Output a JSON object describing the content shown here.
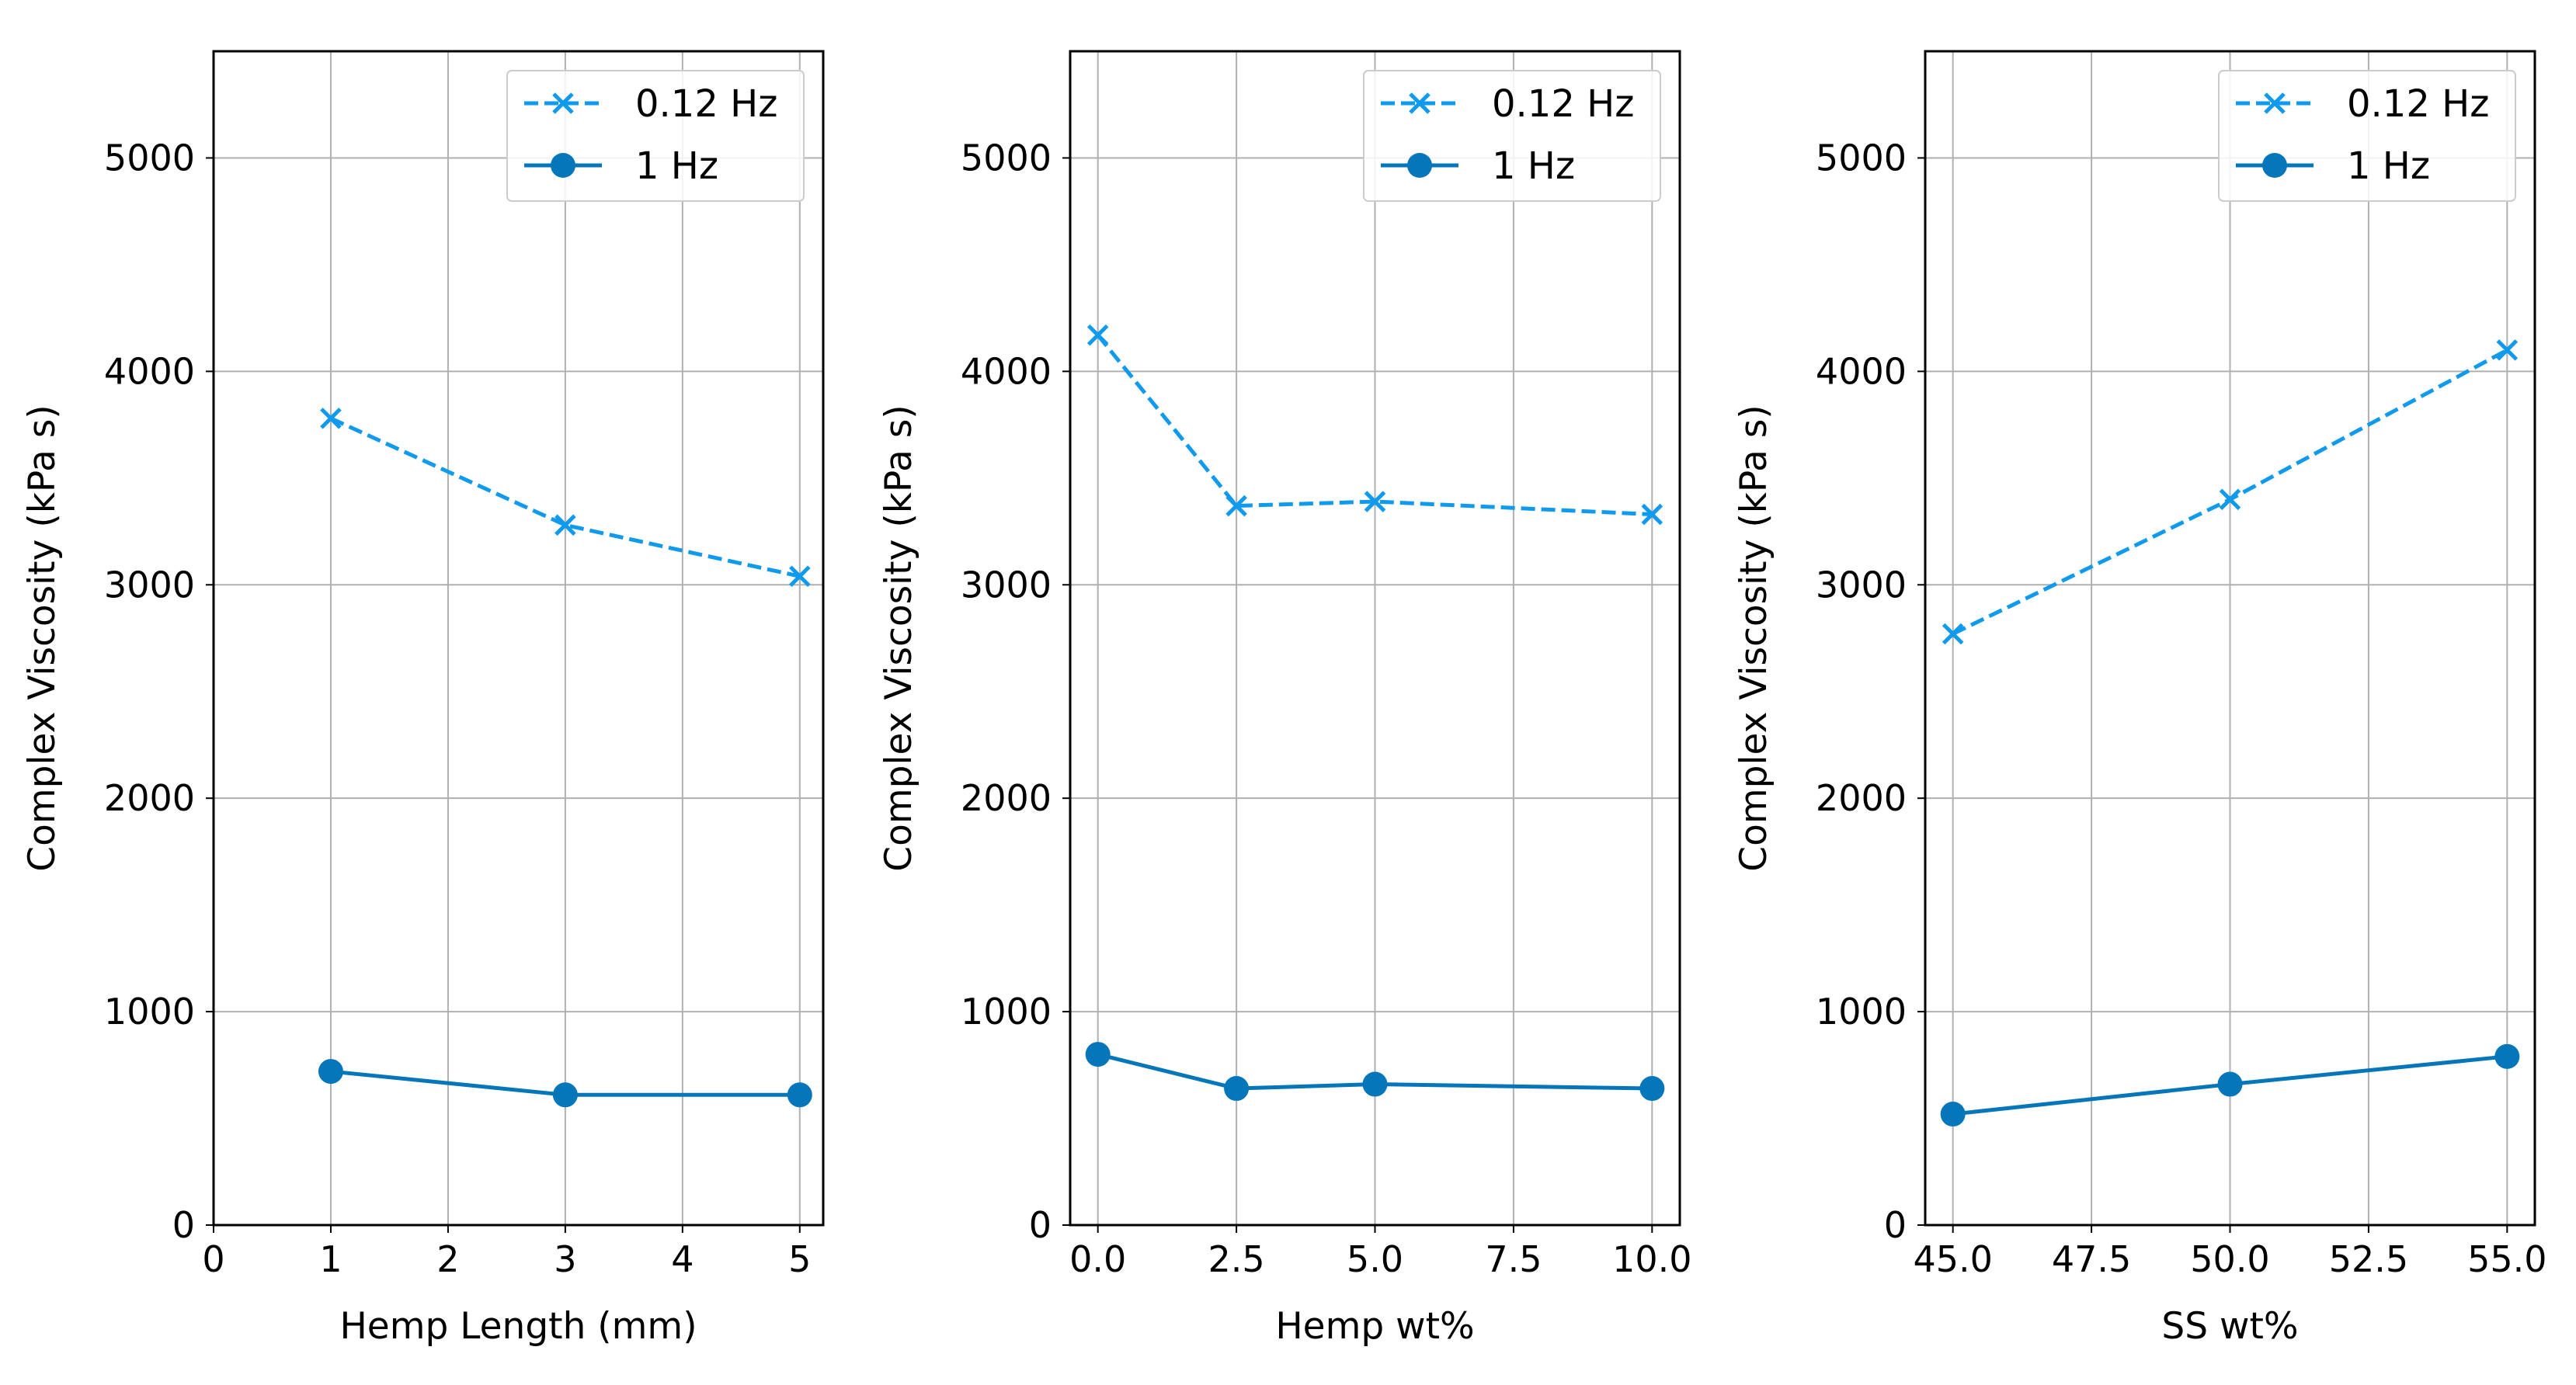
{
  "colors": {
    "series_0_12hz": "#0f9aee",
    "series_1hz": "#0576ba",
    "grid": "#b0b0b0",
    "frame": "#000000"
  },
  "chart_data": [
    {
      "type": "line",
      "title": "",
      "xlabel": "Hemp Length (mm)",
      "ylabel": "Complex Viscosity (kPa s)",
      "xlim": [
        0,
        5.2
      ],
      "ylim": [
        0,
        5500
      ],
      "xticks": [
        0,
        1,
        2,
        3,
        4,
        5
      ],
      "xtick_labels": [
        "0",
        "1",
        "2",
        "3",
        "4",
        "5"
      ],
      "yticks": [
        0,
        1000,
        2000,
        3000,
        4000,
        5000
      ],
      "ytick_labels": [
        "0",
        "1000",
        "2000",
        "3000",
        "4000",
        "5000"
      ],
      "grid": true,
      "legend": "top-right",
      "x": [
        1,
        3,
        5
      ],
      "series": [
        {
          "name": "0.12 Hz",
          "values": [
            3780,
            3280,
            3040
          ],
          "style": "dashed",
          "marker": "x"
        },
        {
          "name": "1 Hz",
          "values": [
            720,
            610,
            610
          ],
          "style": "solid",
          "marker": "o"
        }
      ]
    },
    {
      "type": "line",
      "title": "",
      "xlabel": "Hemp wt%",
      "ylabel": "Complex Viscosity (kPa s)",
      "xlim": [
        -0.5,
        10.5
      ],
      "ylim": [
        0,
        5500
      ],
      "xticks": [
        0,
        2.5,
        5,
        7.5,
        10
      ],
      "xtick_labels": [
        "0.0",
        "2.5",
        "5.0",
        "7.5",
        "10.0"
      ],
      "yticks": [
        0,
        1000,
        2000,
        3000,
        4000,
        5000
      ],
      "ytick_labels": [
        "0",
        "1000",
        "2000",
        "3000",
        "4000",
        "5000"
      ],
      "grid": true,
      "legend": "top-right",
      "x": [
        0,
        2.5,
        5,
        10
      ],
      "series": [
        {
          "name": "0.12 Hz",
          "values": [
            4170,
            3370,
            3390,
            3330
          ],
          "style": "dashed",
          "marker": "x"
        },
        {
          "name": "1 Hz",
          "values": [
            800,
            640,
            660,
            640
          ],
          "style": "solid",
          "marker": "o"
        }
      ]
    },
    {
      "type": "line",
      "title": "",
      "xlabel": "SS wt%",
      "ylabel": "Complex Viscosity (kPa s)",
      "xlim": [
        44.5,
        55.5
      ],
      "ylim": [
        0,
        5500
      ],
      "xticks": [
        45,
        47.5,
        50,
        52.5,
        55
      ],
      "xtick_labels": [
        "45.0",
        "47.5",
        "50.0",
        "52.5",
        "55.0"
      ],
      "yticks": [
        0,
        1000,
        2000,
        3000,
        4000,
        5000
      ],
      "ytick_labels": [
        "0",
        "1000",
        "2000",
        "3000",
        "4000",
        "5000"
      ],
      "grid": true,
      "legend": "top-right",
      "x": [
        45,
        50,
        55
      ],
      "series": [
        {
          "name": "0.12 Hz",
          "values": [
            2770,
            3400,
            4100
          ],
          "style": "dashed",
          "marker": "x"
        },
        {
          "name": "1 Hz",
          "values": [
            520,
            660,
            790
          ],
          "style": "solid",
          "marker": "o"
        }
      ]
    }
  ]
}
